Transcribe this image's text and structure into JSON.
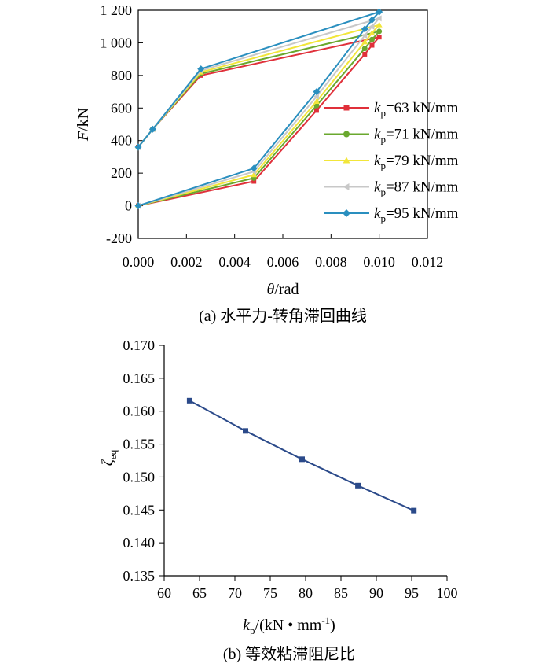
{
  "chart_data": [
    {
      "type": "line",
      "caption": "(a) 水平力-转角滞回曲线",
      "xlabel": {
        "var": "θ",
        "unit": "/rad"
      },
      "ylabel": {
        "var": "F",
        "unit": "/kN"
      },
      "xlim": [
        0,
        0.012
      ],
      "ylim": [
        -200,
        1200
      ],
      "xticks": [
        "0.000",
        "0.002",
        "0.004",
        "0.006",
        "0.008",
        "0.010",
        "0.012"
      ],
      "yticks": [
        "-200",
        "0",
        "200",
        "400",
        "600",
        "800",
        "1 000",
        "1 200"
      ],
      "legend_position": "right",
      "series": [
        {
          "name": {
            "k": "k",
            "sub": "p",
            "rest": "=63 kN/mm"
          },
          "color": "#e0303a",
          "marker": "square",
          "points": [
            [
              0,
              0
            ],
            [
              0.0048,
              150
            ],
            [
              0.0074,
              585
            ],
            [
              0.0094,
              930
            ],
            [
              0.0097,
              985
            ],
            [
              0.01,
              1035
            ],
            [
              0.0026,
              800
            ],
            [
              0.0006,
              470
            ],
            [
              0,
              360
            ]
          ]
        },
        {
          "name": {
            "k": "k",
            "sub": "p",
            "rest": "=71 kN/mm"
          },
          "color": "#6aa82e",
          "marker": "circle",
          "points": [
            [
              0,
              0
            ],
            [
              0.0048,
              170
            ],
            [
              0.0074,
              615
            ],
            [
              0.0094,
              965
            ],
            [
              0.0097,
              1020
            ],
            [
              0.01,
              1070
            ],
            [
              0.0026,
              810
            ],
            [
              0.0006,
              470
            ],
            [
              0,
              360
            ]
          ]
        },
        {
          "name": {
            "k": "k",
            "sub": "p",
            "rest": "=79 kN/mm"
          },
          "color": "#f2e63a",
          "marker": "triangle",
          "points": [
            [
              0,
              0
            ],
            [
              0.0048,
              190
            ],
            [
              0.0074,
              640
            ],
            [
              0.0094,
              1005
            ],
            [
              0.0097,
              1060
            ],
            [
              0.01,
              1110
            ],
            [
              0.0026,
              820
            ],
            [
              0.0006,
              470
            ],
            [
              0,
              360
            ]
          ]
        },
        {
          "name": {
            "k": "k",
            "sub": "p",
            "rest": "=87 kN/mm"
          },
          "color": "#c8c8c8",
          "marker": "triangle-left",
          "points": [
            [
              0,
              0
            ],
            [
              0.0048,
              210
            ],
            [
              0.0074,
              670
            ],
            [
              0.0094,
              1045
            ],
            [
              0.0097,
              1100
            ],
            [
              0.01,
              1150
            ],
            [
              0.0026,
              830
            ],
            [
              0.0006,
              470
            ],
            [
              0,
              360
            ]
          ]
        },
        {
          "name": {
            "k": "k",
            "sub": "p",
            "rest": "=95 kN/mm"
          },
          "color": "#2a8fbf",
          "marker": "diamond",
          "points": [
            [
              0,
              0
            ],
            [
              0.0048,
              230
            ],
            [
              0.0074,
              700
            ],
            [
              0.0094,
              1085
            ],
            [
              0.0097,
              1140
            ],
            [
              0.01,
              1190
            ],
            [
              0.0026,
              840
            ],
            [
              0.0006,
              470
            ],
            [
              0,
              360
            ]
          ]
        }
      ]
    },
    {
      "type": "line",
      "caption": "(b) 等效粘滞阻尼比",
      "xlabel": {
        "k": "k",
        "sub": "p",
        "rest": "/(kN • mm",
        "sup": "-1",
        "close": ")"
      },
      "ylabel": {
        "var": "ζ",
        "sub": "eq"
      },
      "xlim": [
        60,
        100
      ],
      "ylim": [
        0.135,
        0.17
      ],
      "xticks": [
        "60",
        "65",
        "70",
        "75",
        "80",
        "85",
        "90",
        "95",
        "100"
      ],
      "yticks": [
        "0.135",
        "0.140",
        "0.145",
        "0.150",
        "0.155",
        "0.160",
        "0.165",
        "0.170"
      ],
      "series": [
        {
          "color": "#2b4a8a",
          "marker": "square",
          "x": [
            63.6,
            71.5,
            79.5,
            87.4,
            95.3
          ],
          "y": [
            0.1616,
            0.157,
            0.1527,
            0.1487,
            0.1449
          ]
        }
      ]
    }
  ]
}
